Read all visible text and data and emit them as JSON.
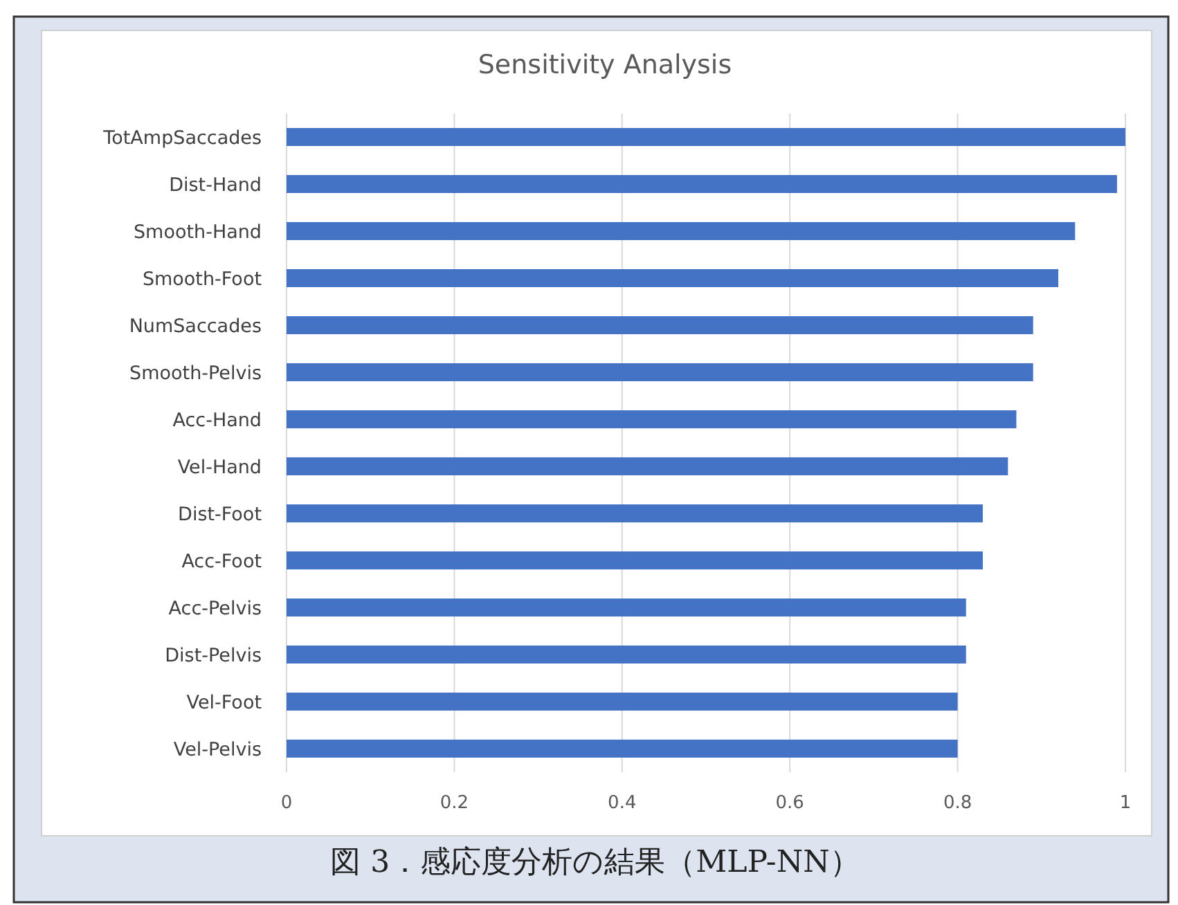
{
  "chart_data": {
    "type": "bar",
    "orientation": "horizontal",
    "title": "Sensitivity Analysis",
    "categories": [
      "TotAmpSaccades",
      "Dist-Hand",
      "Smooth-Hand",
      "Smooth-Foot",
      "NumSaccades",
      "Smooth-Pelvis",
      "Acc-Hand",
      "Vel-Hand",
      "Dist-Foot",
      "Acc-Foot",
      "Acc-Pelvis",
      "Dist-Pelvis",
      "Vel-Foot",
      "Vel-Pelvis"
    ],
    "values": [
      1.0,
      0.99,
      0.94,
      0.92,
      0.89,
      0.89,
      0.87,
      0.86,
      0.83,
      0.83,
      0.81,
      0.81,
      0.8,
      0.8
    ],
    "color": "#4472c4",
    "xlim": [
      0,
      1
    ],
    "xticks": [
      0,
      0.2,
      0.4,
      0.6,
      0.8,
      1
    ],
    "grid": "x",
    "annotations": [
      "図 3．感応度分析の結果（MLP-NN）"
    ]
  }
}
